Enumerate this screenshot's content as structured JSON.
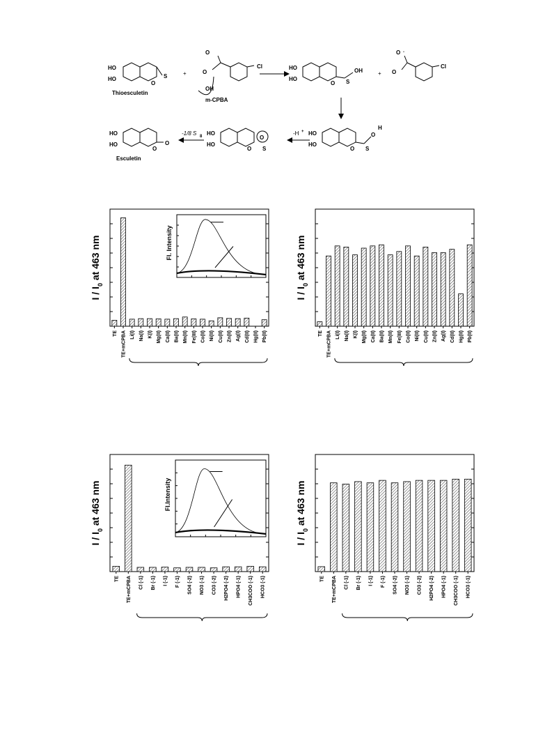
{
  "scheme": {
    "thioesculetin_label": "Thioesculetin",
    "mcpba_label": "m-CPBA",
    "esculetin_label": "Esculetin",
    "proton_loss": "-H",
    "proton_sup": "+",
    "sulfur_loss": "-1/8 S",
    "sulfur_sub": "8",
    "plus": "+",
    "ho": "HO",
    "o": "O",
    "s": "S",
    "oh": "OH",
    "cl": "Cl",
    "h": "H",
    "o_minus": "O",
    "minus": "-"
  },
  "inset_labels": {
    "metal": "Fl. Intensity",
    "anion": "Fl.Intensity"
  },
  "chart_data": [
    {
      "type": "bar",
      "id": "metal-selectivity",
      "orientation": "rotated",
      "ylabel_main": "I / I",
      "ylabel_sub": "0",
      "ylabel_rest": " at 463 nm",
      "categories": [
        "TE",
        "TE+mCPBA",
        "Li(I)",
        "Na(I)",
        "K(I)",
        "Mg(II)",
        "Ca(II)",
        "Ba(II)",
        "Mn(II)",
        "Fe(III)",
        "Co(II)",
        "Ni(II)",
        "Cu(II)",
        "Zn(II)",
        "Ag(I)",
        "Cd(II)",
        "Hg(II)",
        "Pb(II)"
      ],
      "values": [
        0.055,
        1.0,
        0.065,
        0.07,
        0.07,
        0.068,
        0.065,
        0.07,
        0.085,
        0.068,
        0.065,
        0.05,
        0.078,
        0.072,
        0.07,
        0.075,
        0.0,
        0.06
      ],
      "ylim": [
        0,
        1.08
      ],
      "brace_from": 2
    },
    {
      "type": "bar",
      "id": "metal-interference",
      "orientation": "rotated",
      "ylabel_main": "I / I",
      "ylabel_sub": "0",
      "ylabel_rest": " at 463 nm",
      "categories": [
        "TE",
        "TE+mCPBA",
        "Li(I)",
        "Na(I)",
        "K(I)",
        "Mg(II)",
        "Ca(II)",
        "Ba(II)",
        "Mn(II)",
        "Fe(III)",
        "Co(II)",
        "Ni(II)",
        "Cu(II)",
        "Zn(II)",
        "Ag(I)",
        "Cd(II)",
        "Hg(II)",
        "Pb(II)"
      ],
      "values": [
        0.04,
        0.63,
        0.72,
        0.71,
        0.64,
        0.7,
        0.72,
        0.73,
        0.64,
        0.67,
        0.72,
        0.63,
        0.71,
        0.66,
        0.66,
        0.69,
        0.29,
        0.73
      ],
      "ylim": [
        0,
        1.05
      ],
      "brace_from": 2
    },
    {
      "type": "bar",
      "id": "anion-selectivity",
      "orientation": "rotated",
      "ylabel_main": "I / I",
      "ylabel_sub": "0",
      "ylabel_rest": " at 463 nm",
      "categories": [
        "TE",
        "TE+mCPBA",
        "Cl (-1)",
        "Br (-1)",
        "I (-1)",
        "F (-1)",
        "SO4 (-2)",
        "NO3 (-1)",
        "CO3 (-2)",
        "H2PO4 (-2)",
        "HPO4 (-1)",
        "CH3COO (-1)",
        "HCO3 (-1)"
      ],
      "values": [
        0.05,
        1.0,
        0.04,
        0.04,
        0.042,
        0.035,
        0.04,
        0.04,
        0.035,
        0.045,
        0.045,
        0.05,
        0.045
      ],
      "ylim": [
        0,
        1.1
      ],
      "brace_from": 2
    },
    {
      "type": "bar",
      "id": "anion-interference",
      "orientation": "rotated",
      "ylabel_main": "I / I",
      "ylabel_sub": "0",
      "ylabel_rest": " at 463 nm",
      "categories": [
        "TE",
        "TE+mCPBA",
        "Cl (-1)",
        "Br (-1)",
        "I (-1)",
        "F (-1)",
        "SO4 (-2)",
        "NO3 (-1)",
        "CO3 (-2)",
        "H2PO4 (-2)",
        "HPO4 (-1)",
        "CH3COO (-1)",
        "HCO3 (-1)"
      ],
      "values": [
        0.04,
        0.72,
        0.71,
        0.73,
        0.72,
        0.74,
        0.72,
        0.73,
        0.74,
        0.74,
        0.74,
        0.75,
        0.75
      ],
      "ylim": [
        0,
        0.95
      ],
      "brace_from": 2
    }
  ]
}
